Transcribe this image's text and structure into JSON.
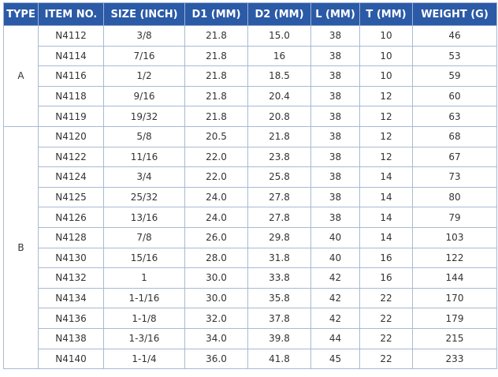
{
  "table": {
    "header": [
      "TYPE",
      "ITEM NO.",
      "SIZE (INCH)",
      "D1 (MM)",
      "D2 (MM)",
      "L (MM)",
      "T (MM)",
      "WEIGHT (G)"
    ],
    "groups": [
      {
        "type": "A",
        "rows": [
          [
            "N4112",
            "3/8",
            "21.8",
            "15.0",
            "38",
            "10",
            "46"
          ],
          [
            "N4114",
            "7/16",
            "21.8",
            "16",
            "38",
            "10",
            "53"
          ],
          [
            "N4116",
            "1/2",
            "21.8",
            "18.5",
            "38",
            "10",
            "59"
          ],
          [
            "N4118",
            "9/16",
            "21.8",
            "20.4",
            "38",
            "12",
            "60"
          ],
          [
            "N4119",
            "19/32",
            "21.8",
            "20.8",
            "38",
            "12",
            "63"
          ]
        ]
      },
      {
        "type": "B",
        "rows": [
          [
            "N4120",
            "5/8",
            "20.5",
            "21.8",
            "38",
            "12",
            "68"
          ],
          [
            "N4122",
            "11/16",
            "22.0",
            "23.8",
            "38",
            "12",
            "67"
          ],
          [
            "N4124",
            "3/4",
            "22.0",
            "25.8",
            "38",
            "14",
            "73"
          ],
          [
            "N4125",
            "25/32",
            "24.0",
            "27.8",
            "38",
            "14",
            "80"
          ],
          [
            "N4126",
            "13/16",
            "24.0",
            "27.8",
            "38",
            "14",
            "79"
          ],
          [
            "N4128",
            "7/8",
            "26.0",
            "29.8",
            "40",
            "14",
            "103"
          ],
          [
            "N4130",
            "15/16",
            "28.0",
            "31.8",
            "40",
            "16",
            "122"
          ],
          [
            "N4132",
            "1",
            "30.0",
            "33.8",
            "42",
            "16",
            "144"
          ],
          [
            "N4134",
            "1-1/16",
            "30.0",
            "35.8",
            "42",
            "22",
            "170"
          ],
          [
            "N4136",
            "1-1/8",
            "32.0",
            "37.8",
            "42",
            "22",
            "179"
          ],
          [
            "N4138",
            "1-3/16",
            "34.0",
            "39.8",
            "44",
            "22",
            "215"
          ],
          [
            "N4140",
            "1-1/4",
            "36.0",
            "41.8",
            "45",
            "22",
            "233"
          ]
        ]
      }
    ]
  }
}
